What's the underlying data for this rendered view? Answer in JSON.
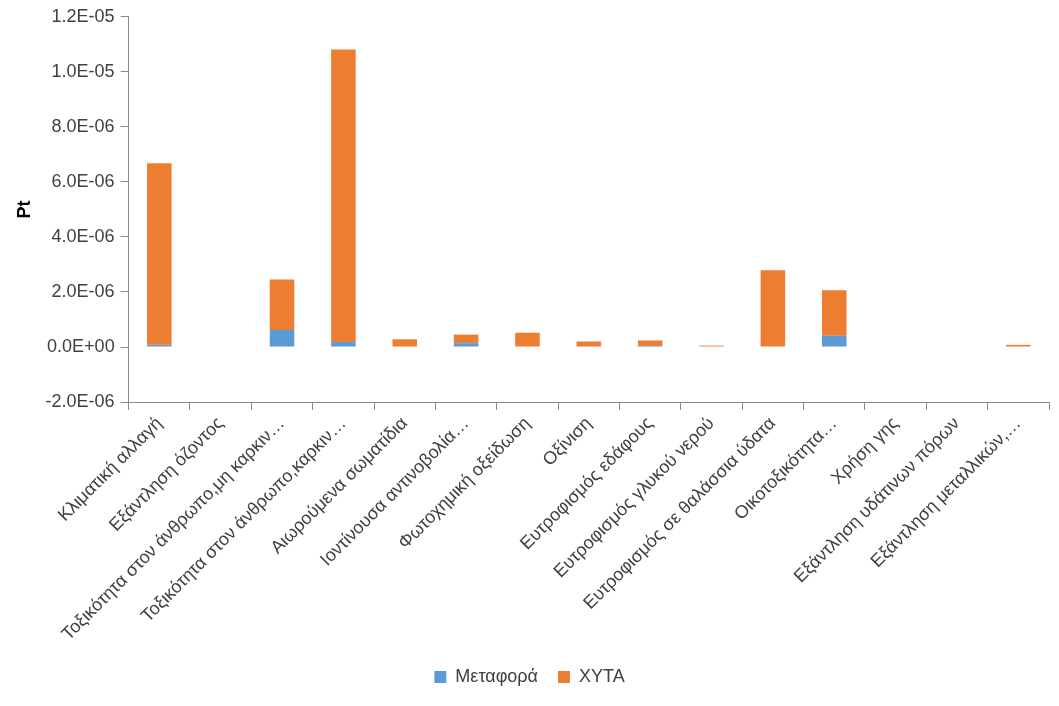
{
  "chart_data": {
    "type": "bar",
    "stacked": true,
    "ylabel": "Pt",
    "categories": [
      "Κλιματική αλλαγή",
      "Εξάντληση όζοντος",
      "Τοξικότητα στον άνθρωπο,μη καρκιν…",
      "Τοξικότητα στον άνθρωπο,καρκιν…",
      "Αιωρούμενα σωματίδια",
      "Ιοντίνουσα αντινοβολία…",
      "Φωτοχημική οξείδωση",
      "Οξίνιση",
      "Ευτροφισμός εδάφους",
      "Ευτροφισμός γλυκού νερού",
      "Ευτροφισμός σε θαλάσσια ύδατα",
      "Οικοτοξικότητα…",
      "Χρήση γης",
      "Εξάντληση υδάτινων πόρων",
      "Εξάντληση μεταλλικών,…"
    ],
    "series": [
      {
        "name": "Μεταφορά",
        "color": "#5b9bd5",
        "values": [
          8e-08,
          0,
          6.2e-07,
          1.8e-07,
          null,
          1.4e-07,
          null,
          null,
          4e-08,
          null,
          0,
          4.1e-07,
          0,
          0,
          null
        ]
      },
      {
        "name": "ΧΥΤΑ",
        "color": "#ed7d31",
        "values": [
          6.6e-06,
          0,
          1.83e-06,
          1.063e-05,
          2.8e-07,
          3.1e-07,
          5.2e-07,
          2e-07,
          2e-07,
          5e-08,
          2.79e-06,
          1.65e-06,
          0,
          0,
          8e-08
        ]
      }
    ],
    "ylim": [
      -2e-06,
      1.2e-05
    ],
    "yticks": [
      {
        "value": -2e-06,
        "label": "-2.0E-06"
      },
      {
        "value": 0,
        "label": "0.0E+00"
      },
      {
        "value": 2e-06,
        "label": "2.0E-06"
      },
      {
        "value": 4e-06,
        "label": "4.0E-06"
      },
      {
        "value": 6e-06,
        "label": "6.0E-06"
      },
      {
        "value": 8e-06,
        "label": "8.0E-06"
      },
      {
        "value": 1e-05,
        "label": "1.0E-05"
      },
      {
        "value": 1.2e-05,
        "label": "1.2E-05"
      }
    ],
    "grid": false,
    "legend": "bottom"
  }
}
